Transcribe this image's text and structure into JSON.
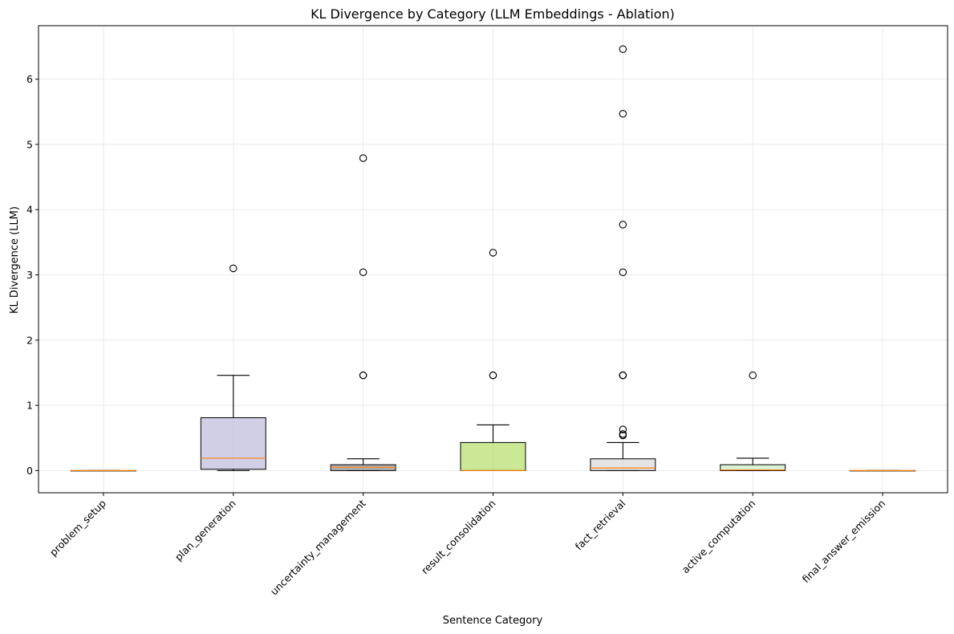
{
  "chart_data": {
    "type": "boxplot",
    "title": "KL Divergence by Category (LLM Embeddings - Ablation)",
    "xlabel": "Sentence Category",
    "ylabel": "KL Divergence (LLM)",
    "ylim": [
      -0.34,
      6.82
    ],
    "yticks": [
      0,
      1,
      2,
      3,
      4,
      5,
      6
    ],
    "grid": true,
    "median_color": "#ff7f0e",
    "categories": [
      {
        "name": "problem_setup",
        "whisker_low": 0,
        "q1": 0,
        "median": 0,
        "q3": 0,
        "whisker_high": 0,
        "outliers": [],
        "color": "#8dd3c7"
      },
      {
        "name": "plan_generation",
        "whisker_low": 0,
        "q1": 0.02,
        "median": 0.19,
        "q3": 0.81,
        "whisker_high": 1.46,
        "outliers": [
          3.1
        ],
        "color": "#bebada"
      },
      {
        "name": "uncertainty_management",
        "whisker_low": 0,
        "q1": 0,
        "median": 0.05,
        "q3": 0.09,
        "whisker_high": 0.18,
        "outliers": [
          1.46,
          1.46,
          3.04,
          4.79
        ],
        "color": "#8f8f8f"
      },
      {
        "name": "result_consolidation",
        "whisker_low": 0,
        "q1": 0,
        "median": 0,
        "q3": 0.43,
        "whisker_high": 0.7,
        "outliers": [
          1.46,
          1.46,
          3.34
        ],
        "color": "#b3de69"
      },
      {
        "name": "fact_retrieval",
        "whisker_low": 0,
        "q1": 0,
        "median": 0.04,
        "q3": 0.18,
        "whisker_high": 0.43,
        "outliers": [
          0.54,
          0.56,
          0.63,
          1.46,
          1.46,
          1.46,
          3.04,
          3.77,
          5.47,
          6.46
        ],
        "color": "#d9d9d9"
      },
      {
        "name": "active_computation",
        "whisker_low": 0,
        "q1": 0,
        "median": 0.01,
        "q3": 0.09,
        "whisker_high": 0.19,
        "outliers": [
          1.46
        ],
        "color": "#ccebc5"
      },
      {
        "name": "final_answer_emission",
        "whisker_low": 0,
        "q1": 0,
        "median": 0,
        "q3": 0,
        "whisker_high": 0,
        "outliers": [],
        "color": "#ffed6f"
      }
    ]
  }
}
